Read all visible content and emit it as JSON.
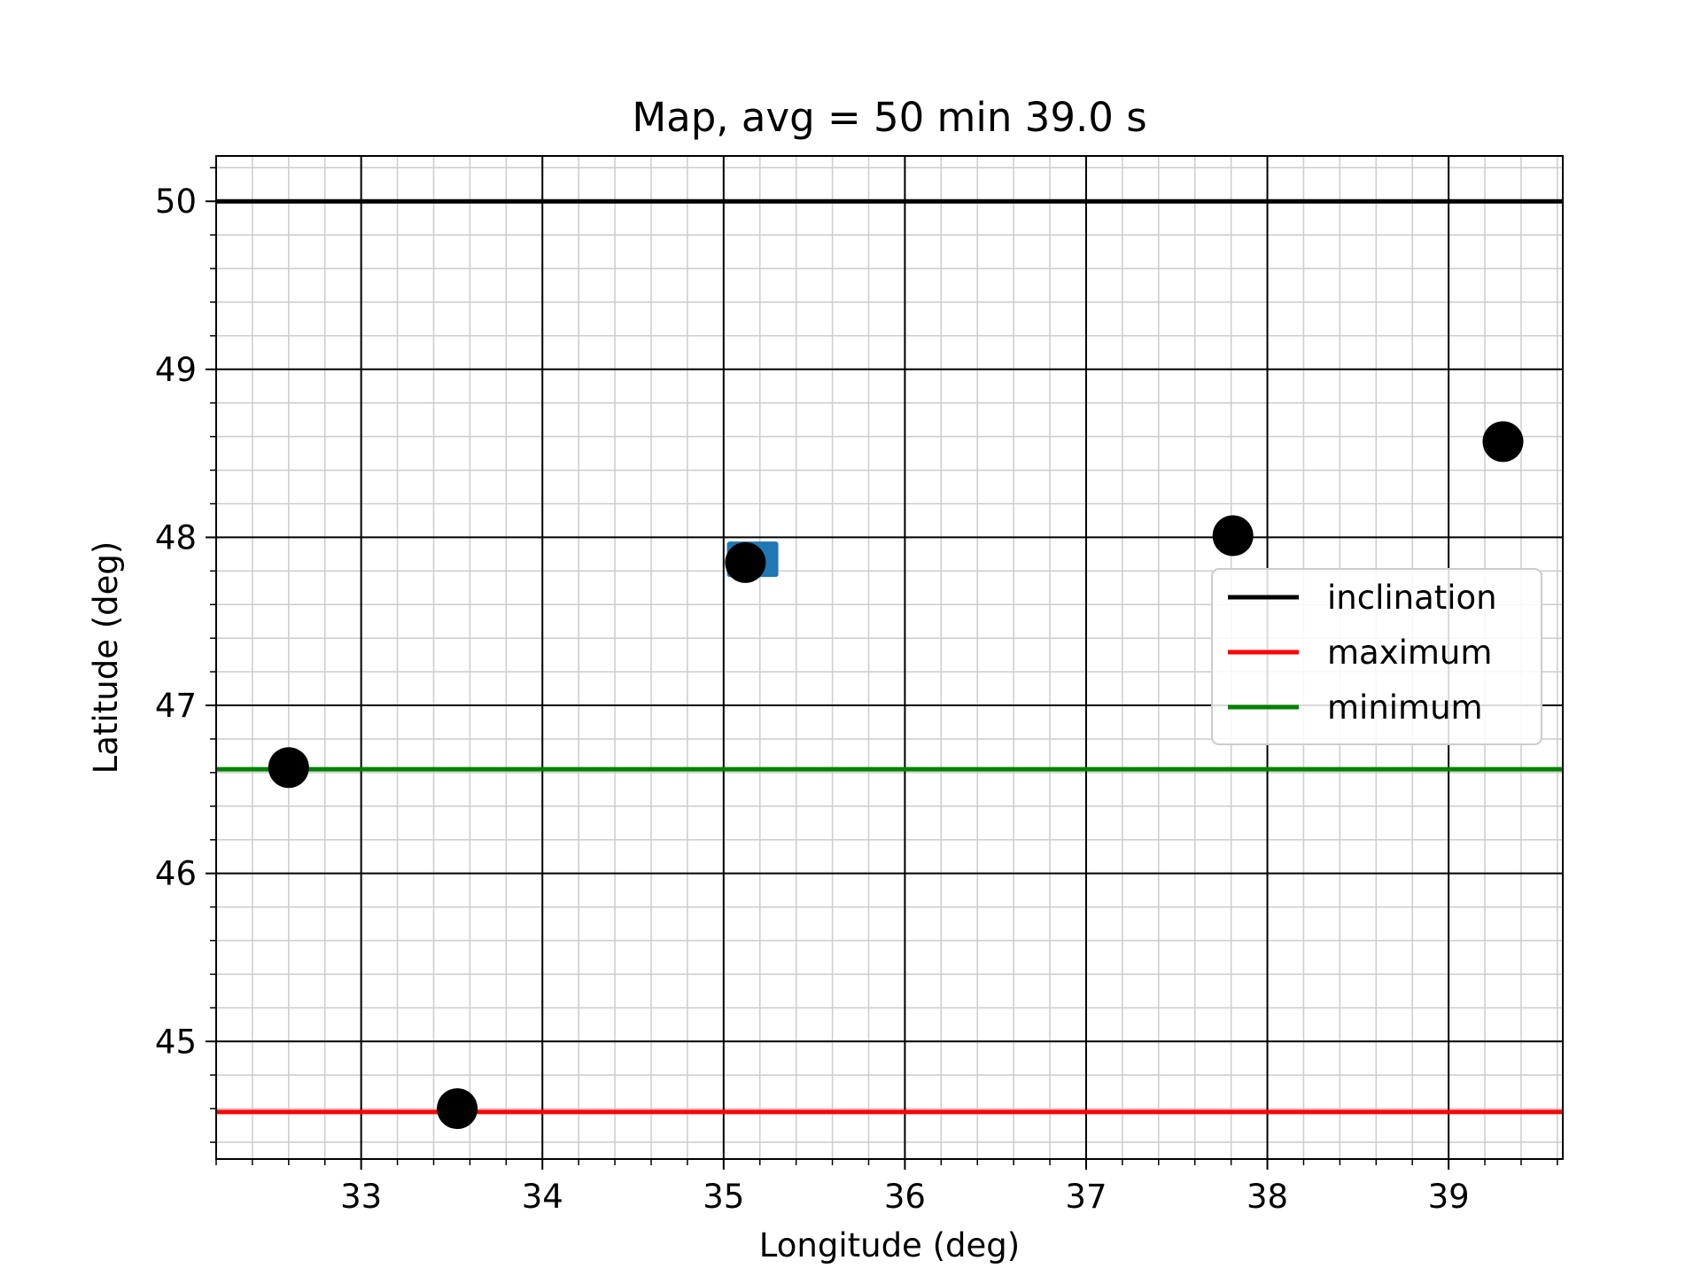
{
  "chart_data": {
    "type": "scatter",
    "title": "Map, avg = 50 min 39.0 s",
    "xlabel": "Longitude (deg)",
    "ylabel": "Latitude (deg)",
    "xlim": [
      32.2,
      39.63
    ],
    "ylim": [
      44.3,
      50.27
    ],
    "xticks": [
      33,
      34,
      35,
      36,
      37,
      38,
      39
    ],
    "yticks": [
      45,
      46,
      47,
      48,
      49,
      50
    ],
    "grid": {
      "major": true,
      "minor": true
    },
    "legend_position": "center-right",
    "points": [
      {
        "x": 32.6,
        "y": 46.63
      },
      {
        "x": 33.53,
        "y": 44.6
      },
      {
        "x": 35.12,
        "y": 47.85
      },
      {
        "x": 37.81,
        "y": 48.01
      },
      {
        "x": 39.3,
        "y": 48.57
      }
    ],
    "point_color": "#000000",
    "marker_square": {
      "x": 35.16,
      "y": 47.87,
      "color": "#1f77b4"
    },
    "hlines": [
      {
        "name": "inclination",
        "y": 50.0,
        "color": "#000000"
      },
      {
        "name": "maximum",
        "y": 44.58,
        "color": "#ff0000"
      },
      {
        "name": "minimum",
        "y": 46.62,
        "color": "#008000"
      }
    ]
  }
}
